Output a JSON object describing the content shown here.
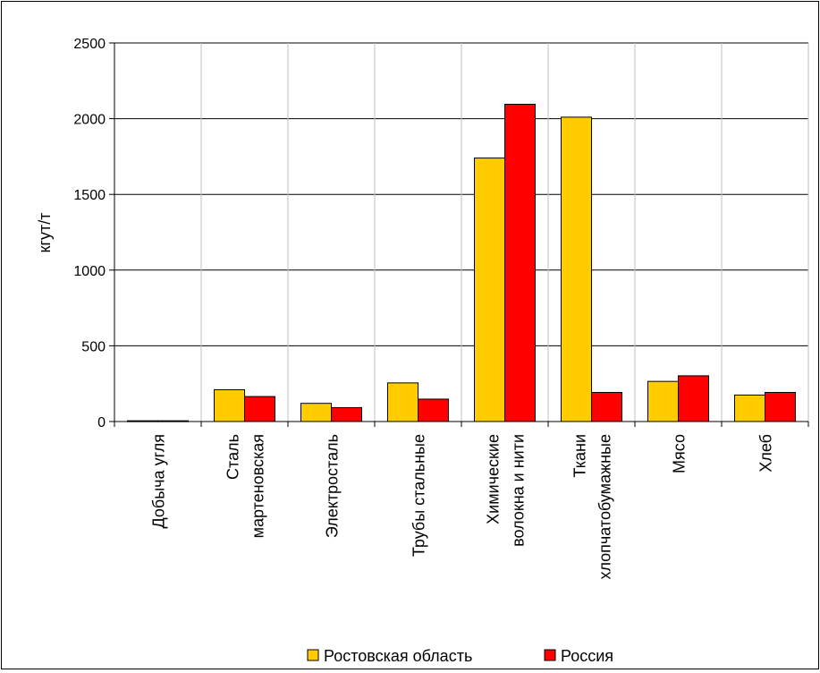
{
  "chart_data": {
    "type": "bar",
    "ylabel": "кгут/т",
    "ylim": [
      0,
      2500
    ],
    "yticks": [
      0,
      500,
      1000,
      1500,
      2000,
      2500
    ],
    "grid": true,
    "legend_position": "bottom",
    "categories": [
      [
        "Добыча угля"
      ],
      [
        "Сталь",
        "мартеновская"
      ],
      [
        "Электросталь"
      ],
      [
        "Трубы стальные"
      ],
      [
        "Химические",
        "волокна и нити"
      ],
      [
        "Ткани",
        "хлопчатобумажные"
      ],
      [
        "Мясо"
      ],
      [
        "Хлеб"
      ]
    ],
    "series": [
      {
        "name": "Ростовская область",
        "color": "#FFCC00",
        "values": [
          5,
          210,
          120,
          255,
          1740,
          2010,
          265,
          175
        ]
      },
      {
        "name": "Россия",
        "color": "#FF0000",
        "values": [
          5,
          165,
          92,
          148,
          2095,
          192,
          302,
          192
        ]
      }
    ]
  }
}
